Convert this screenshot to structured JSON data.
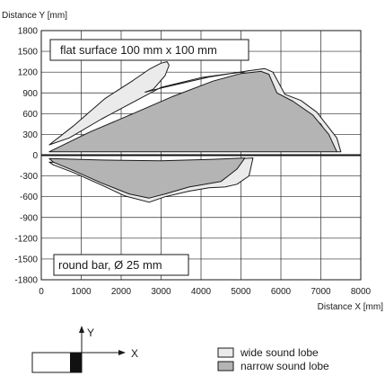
{
  "chart_data": {
    "type": "area",
    "xlabel": "Distance X [mm]",
    "ylabel": "Distance Y [mm]",
    "xlim": [
      0,
      8000
    ],
    "ylim": [
      -1800,
      1800
    ],
    "x_ticks": [
      0,
      1000,
      2000,
      3000,
      4000,
      5000,
      6000,
      7000,
      8000
    ],
    "y_ticks": [
      1800,
      1500,
      1200,
      900,
      600,
      300,
      0,
      -300,
      -600,
      -900,
      -1200,
      -1500,
      -1800
    ],
    "grid": true,
    "annotations": [
      "flat surface 100 mm x 100 mm",
      "round bar, Ø 25 mm"
    ],
    "legend_position": "bottom-right",
    "colors": {
      "wide_sound_lobe": "#ebebeb",
      "narrow_sound_lobe": "#b4b4b4"
    },
    "series": [
      {
        "name": "wide sound lobe",
        "regions": [
          {
            "label": "flat surface 100 mm x 100 mm",
            "points": [
              [
                200,
                150
              ],
              [
                800,
                420
              ],
              [
                1600,
                820
              ],
              [
                2300,
                1080
              ],
              [
                2700,
                1240
              ],
              [
                3000,
                1330
              ],
              [
                3150,
                1350
              ],
              [
                3200,
                1300
              ],
              [
                3100,
                1150
              ],
              [
                2800,
                950
              ],
              [
                2600,
                910
              ],
              [
                3000,
                970
              ],
              [
                4200,
                1130
              ],
              [
                5200,
                1220
              ],
              [
                5600,
                1250
              ],
              [
                5800,
                1200
              ],
              [
                6100,
                880
              ],
              [
                6500,
                790
              ],
              [
                6900,
                620
              ],
              [
                7400,
                250
              ],
              [
                7500,
                50
              ],
              [
                7400,
                50
              ],
              [
                7000,
                450
              ],
              [
                6400,
                700
              ],
              [
                6000,
                800
              ],
              [
                5500,
                1150
              ],
              [
                5000,
                1200
              ],
              [
                4000,
                1120
              ],
              [
                3000,
                980
              ],
              [
                1500,
                520
              ],
              [
                700,
                250
              ],
              [
                200,
                150
              ]
            ]
          },
          {
            "label": "round bar, Ø 25 mm",
            "points": [
              [
                200,
                -100
              ],
              [
                1000,
                -110
              ],
              [
                2500,
                -100
              ],
              [
                4000,
                -80
              ],
              [
                5000,
                -50
              ],
              [
                5300,
                -40
              ],
              [
                5200,
                -300
              ],
              [
                4900,
                -420
              ],
              [
                4600,
                -460
              ],
              [
                4200,
                -470
              ],
              [
                3700,
                -520
              ],
              [
                3100,
                -600
              ],
              [
                2700,
                -680
              ],
              [
                2100,
                -590
              ],
              [
                1500,
                -430
              ],
              [
                800,
                -250
              ],
              [
                300,
                -140
              ],
              [
                200,
                -100
              ]
            ]
          }
        ]
      },
      {
        "name": "narrow sound lobe",
        "regions": [
          {
            "label": "flat surface 100 mm x 100 mm",
            "points": [
              [
                200,
                50
              ],
              [
                1200,
                330
              ],
              [
                2300,
                600
              ],
              [
                3300,
                850
              ],
              [
                4300,
                1070
              ],
              [
                5000,
                1180
              ],
              [
                5500,
                1210
              ],
              [
                5700,
                1170
              ],
              [
                5900,
                900
              ],
              [
                6300,
                780
              ],
              [
                6800,
                580
              ],
              [
                7200,
                300
              ],
              [
                7400,
                50
              ]
            ]
          },
          {
            "label": "round bar, Ø 25 mm",
            "points": [
              [
                200,
                -50
              ],
              [
                1500,
                -70
              ],
              [
                3000,
                -80
              ],
              [
                4300,
                -60
              ],
              [
                5100,
                -40
              ],
              [
                4900,
                -200
              ],
              [
                4500,
                -380
              ],
              [
                3700,
                -460
              ],
              [
                3100,
                -560
              ],
              [
                2700,
                -620
              ],
              [
                2200,
                -560
              ],
              [
                1500,
                -400
              ],
              [
                800,
                -220
              ],
              [
                300,
                -100
              ],
              [
                200,
                -50
              ]
            ]
          }
        ]
      }
    ],
    "inset": {
      "axis_labels": [
        "Y",
        "X"
      ]
    }
  }
}
